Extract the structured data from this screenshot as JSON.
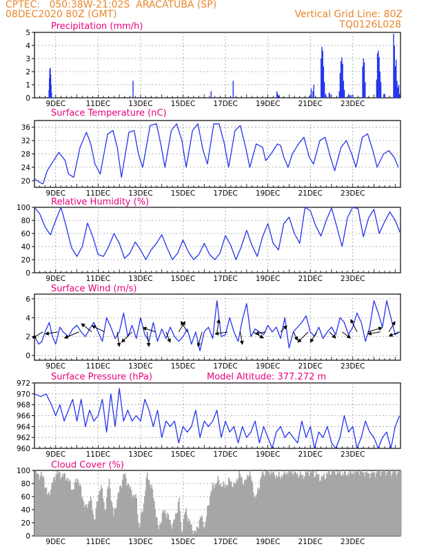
{
  "header": {
    "left_line1": "CPTEC:   050:38W-21:02S  ARACATUBA (SP)",
    "left_line2": "08DEC2020 80Z (GMT)",
    "right_line1": "Vertical Grid Line: 80Z",
    "right_line2": "TQ0126L028"
  },
  "colors": {
    "line": "#2233ee",
    "title": "#e6007e",
    "header": "#e8862a",
    "cloud": "#a6a6a6",
    "wind_arrow": "#000000"
  },
  "x_ticks": [
    "9DEC",
    "11DEC",
    "13DEC",
    "15DEC",
    "17DEC",
    "19DEC",
    "21DEC",
    "23DEC"
  ],
  "chart_data": [
    {
      "type": "bar",
      "id": "precip",
      "title": "Precipitation (mm/h)",
      "ylim": [
        0,
        5
      ],
      "yticks": [
        0,
        1,
        2,
        3,
        4,
        5
      ],
      "x_units": "days after 08DEC2020",
      "bars": [
        [
          0.68,
          0.6
        ],
        [
          0.7,
          1.5
        ],
        [
          0.72,
          2.2
        ],
        [
          0.74,
          2.3
        ],
        [
          0.76,
          1.8
        ],
        [
          0.78,
          1.0
        ],
        [
          0.8,
          0.4
        ],
        [
          4.64,
          1.3
        ],
        [
          8.32,
          0.5
        ],
        [
          9.36,
          1.3
        ],
        [
          11.42,
          0.5
        ],
        [
          11.46,
          0.3
        ],
        [
          11.54,
          0.2
        ],
        [
          12.96,
          0.15
        ],
        [
          13.04,
          0.7
        ],
        [
          13.12,
          0.5
        ],
        [
          13.16,
          1.0
        ],
        [
          13.5,
          3.0
        ],
        [
          13.54,
          3.9
        ],
        [
          13.58,
          3.6
        ],
        [
          13.62,
          2.4
        ],
        [
          13.66,
          1.2
        ],
        [
          13.72,
          0.3
        ],
        [
          13.88,
          0.4
        ],
        [
          13.92,
          0.3
        ],
        [
          14.36,
          0.5
        ],
        [
          14.4,
          1.9
        ],
        [
          14.44,
          2.8
        ],
        [
          14.48,
          3.1
        ],
        [
          14.52,
          2.6
        ],
        [
          14.56,
          1.3
        ],
        [
          14.6,
          0.6
        ],
        [
          14.8,
          0.3
        ],
        [
          14.86,
          0.2
        ],
        [
          14.92,
          0.2
        ],
        [
          15.0,
          0.2
        ],
        [
          15.46,
          2.4
        ],
        [
          15.5,
          3.0
        ],
        [
          15.54,
          2.7
        ],
        [
          15.58,
          1.2
        ],
        [
          16.12,
          1.4
        ],
        [
          16.16,
          3.4
        ],
        [
          16.2,
          3.6
        ],
        [
          16.24,
          3.1
        ],
        [
          16.28,
          2.0
        ],
        [
          16.32,
          1.2
        ],
        [
          16.46,
          0.3
        ],
        [
          16.5,
          0.3
        ],
        [
          16.92,
          4.9
        ],
        [
          16.96,
          4.0
        ],
        [
          17.0,
          2.4
        ],
        [
          17.04,
          2.9
        ],
        [
          17.08,
          1.3
        ],
        [
          17.12,
          0.8
        ],
        [
          17.16,
          1.0
        ],
        [
          17.2,
          0.3
        ]
      ]
    },
    {
      "type": "line",
      "id": "temp",
      "title": "Surface Temperature (nC)",
      "ylim": [
        18,
        38
      ],
      "yticks": [
        20,
        24,
        28,
        32,
        36
      ],
      "x": [
        0,
        0.25,
        0.4,
        0.6,
        0.9,
        1.15,
        1.45,
        1.6,
        1.85,
        2.15,
        2.45,
        2.65,
        2.85,
        3.1,
        3.45,
        3.7,
        3.9,
        4.1,
        4.45,
        4.7,
        4.9,
        5.1,
        5.45,
        5.75,
        5.95,
        6.15,
        6.45,
        6.7,
        6.95,
        7.15,
        7.45,
        7.7,
        7.95,
        8.15,
        8.45,
        8.7,
        8.95,
        9.15,
        9.45,
        9.7,
        9.95,
        10.15,
        10.45,
        10.75,
        10.9,
        11.15,
        11.45,
        11.6,
        11.75,
        11.95,
        12.15,
        12.45,
        12.7,
        12.95,
        13.15,
        13.45,
        13.7,
        13.95,
        14.15,
        14.45,
        14.7,
        14.95,
        15.15,
        15.45,
        15.7,
        15.95,
        16.15,
        16.45,
        16.7,
        16.95,
        17.15
      ],
      "y": [
        20.5,
        19.5,
        19,
        23,
        26,
        28.5,
        26,
        22,
        21,
        30,
        34.5,
        31,
        25,
        22,
        34,
        35,
        30,
        21,
        34.5,
        35,
        28,
        24,
        36.5,
        37,
        31,
        24,
        35,
        37,
        32,
        24,
        35,
        37,
        29,
        25,
        37,
        37,
        31,
        24,
        35,
        36.5,
        30,
        24,
        31,
        30,
        26,
        28,
        31,
        30.5,
        27,
        24,
        28,
        31,
        33,
        27,
        25,
        32,
        33,
        27,
        23,
        30,
        32,
        28,
        24,
        33,
        34,
        29,
        24,
        28,
        29,
        27,
        24
      ]
    },
    {
      "type": "line",
      "id": "rh",
      "title": "Relative Humidity (%)",
      "ylim": [
        0,
        100
      ],
      "yticks": [
        0,
        20,
        40,
        60,
        80,
        100
      ],
      "x": [
        0,
        0.25,
        0.5,
        0.75,
        1.0,
        1.25,
        1.5,
        1.75,
        2.0,
        2.25,
        2.5,
        2.75,
        3.0,
        3.25,
        3.5,
        3.75,
        4.0,
        4.25,
        4.5,
        4.75,
        5.0,
        5.25,
        5.5,
        5.75,
        6.0,
        6.25,
        6.5,
        6.75,
        7.0,
        7.25,
        7.5,
        7.75,
        8.0,
        8.25,
        8.5,
        8.75,
        9.0,
        9.25,
        9.5,
        9.75,
        10.0,
        10.25,
        10.5,
        10.75,
        11.0,
        11.25,
        11.5,
        11.75,
        12.0,
        12.25,
        12.5,
        12.75,
        13.0,
        13.25,
        13.5,
        13.75,
        14.0,
        14.25,
        14.5,
        14.75,
        15.0,
        15.25,
        15.5,
        15.75,
        16.0,
        16.25,
        16.5,
        16.75,
        17.0,
        17.25
      ],
      "y": [
        100,
        90,
        70,
        58,
        80,
        100,
        70,
        38,
        25,
        40,
        76,
        55,
        28,
        25,
        40,
        60,
        45,
        22,
        30,
        47,
        35,
        20,
        35,
        45,
        58,
        38,
        20,
        30,
        50,
        32,
        20,
        28,
        45,
        28,
        20,
        30,
        57,
        42,
        20,
        40,
        65,
        42,
        25,
        55,
        75,
        45,
        35,
        75,
        85,
        60,
        45,
        100,
        95,
        72,
        56,
        80,
        99,
        70,
        40,
        84,
        100,
        98,
        55,
        84,
        97,
        60,
        78,
        93,
        80,
        60
      ]
    },
    {
      "type": "line",
      "id": "wind",
      "title": "Surface Wind (m/s)",
      "ylim": [
        -0.5,
        6.5
      ],
      "yticks": [
        0,
        2,
        4,
        6
      ],
      "x": [
        0,
        0.2,
        0.35,
        0.5,
        0.7,
        0.85,
        1.0,
        1.2,
        1.35,
        1.6,
        1.8,
        2.0,
        2.2,
        2.4,
        2.6,
        2.8,
        3.0,
        3.2,
        3.4,
        3.6,
        3.8,
        4.0,
        4.2,
        4.4,
        4.6,
        4.8,
        5.0,
        5.2,
        5.4,
        5.6,
        5.8,
        6.0,
        6.2,
        6.4,
        6.6,
        6.8,
        7.0,
        7.2,
        7.4,
        7.6,
        7.8,
        8.0,
        8.2,
        8.4,
        8.6,
        8.8,
        9.0,
        9.2,
        9.4,
        9.6,
        9.8,
        10.0,
        10.2,
        10.4,
        10.6,
        10.8,
        11.0,
        11.2,
        11.4,
        11.6,
        11.8,
        12.0,
        12.2,
        12.4,
        12.6,
        12.8,
        13.0,
        13.2,
        13.4,
        13.6,
        13.8,
        14.0,
        14.2,
        14.4,
        14.6,
        14.8,
        15.0,
        15.2,
        15.4,
        15.6,
        15.8,
        16.0,
        16.2,
        16.4,
        16.6,
        16.8,
        17.0,
        17.2
      ],
      "y": [
        2,
        1.2,
        1.5,
        2.5,
        3.5,
        2.0,
        1.2,
        3.0,
        2.5,
        2.0,
        2.8,
        3.2,
        2.5,
        2.0,
        2.8,
        3.5,
        2.5,
        1.5,
        4.0,
        3.0,
        1.8,
        2.5,
        4.5,
        2.0,
        3.2,
        1.8,
        4.0,
        2.2,
        1.5,
        3.5,
        1.5,
        2.8,
        1.8,
        3.0,
        2.0,
        1.5,
        2.0,
        2.8,
        1.2,
        2.5,
        0.5,
        2.5,
        3.0,
        1.8,
        5.8,
        2.0,
        2.2,
        4.0,
        2.5,
        1.5,
        3.8,
        5.5,
        2.0,
        2.8,
        2.5,
        2.2,
        3.2,
        2.5,
        3.0,
        1.8,
        4.0,
        0.8,
        2.5,
        3.0,
        3.5,
        4.2,
        2.5,
        2.0,
        3.0,
        1.8,
        2.5,
        3.0,
        2.2,
        4.0,
        3.5,
        2.2,
        3.0,
        4.5,
        3.5,
        1.5,
        3.0,
        5.8,
        4.5,
        3.0,
        5.8,
        4.0,
        2.2,
        2.5
      ]
    },
    {
      "type": "line",
      "id": "pres",
      "title": "Surface Pressure (hPa)",
      "annotation": "Model Altitude: 377.272 m",
      "ylim": [
        960,
        972
      ],
      "yticks": [
        960,
        962,
        964,
        966,
        968,
        970,
        972
      ],
      "x": [
        0,
        0.3,
        0.55,
        0.8,
        1.0,
        1.2,
        1.4,
        1.6,
        1.8,
        2.0,
        2.2,
        2.4,
        2.6,
        2.8,
        3.0,
        3.2,
        3.4,
        3.6,
        3.8,
        4.0,
        4.2,
        4.4,
        4.6,
        4.8,
        5.0,
        5.2,
        5.4,
        5.6,
        5.8,
        6.0,
        6.2,
        6.4,
        6.6,
        6.8,
        7.0,
        7.2,
        7.4,
        7.6,
        7.8,
        8.0,
        8.2,
        8.4,
        8.6,
        8.8,
        9.0,
        9.2,
        9.4,
        9.6,
        9.8,
        10.0,
        10.2,
        10.4,
        10.6,
        10.8,
        11.0,
        11.2,
        11.4,
        11.6,
        11.8,
        12.0,
        12.2,
        12.4,
        12.6,
        12.8,
        13.0,
        13.2,
        13.4,
        13.6,
        13.8,
        14.0,
        14.2,
        14.4,
        14.6,
        14.8,
        15.0,
        15.2,
        15.4,
        15.6,
        15.8,
        16.0,
        16.2,
        16.4,
        16.6,
        16.8,
        17.0,
        17.2
      ],
      "y": [
        970,
        969.5,
        970,
        968,
        966,
        968,
        965,
        967,
        969,
        965,
        969,
        964,
        967,
        965,
        966,
        969,
        963,
        970,
        964,
        971,
        965,
        967,
        965,
        966,
        965,
        969,
        967,
        964,
        967,
        962,
        965,
        964,
        965,
        961,
        964,
        963,
        964,
        967,
        962,
        965,
        964,
        965,
        967,
        962,
        965,
        963,
        964,
        961,
        964,
        962,
        963,
        965,
        961,
        964,
        962,
        960,
        963,
        964,
        962,
        963,
        962,
        961,
        965,
        962,
        964,
        960,
        963,
        962,
        964,
        961,
        960,
        962,
        966,
        963,
        964,
        960,
        962,
        965,
        963,
        962,
        960,
        962,
        963,
        960,
        964,
        966
      ]
    },
    {
      "type": "bar",
      "id": "cloud",
      "title": "Cloud Cover (%)",
      "ylim": [
        0,
        100
      ],
      "yticks": [
        0,
        20,
        40,
        60,
        80,
        100
      ],
      "cloud_profile": [
        [
          0,
          97
        ],
        [
          0.4,
          90
        ],
        [
          0.6,
          60
        ],
        [
          1.0,
          96
        ],
        [
          1.5,
          90
        ],
        [
          1.8,
          70
        ],
        [
          2.0,
          90
        ],
        [
          2.4,
          40
        ],
        [
          2.6,
          60
        ],
        [
          2.8,
          25
        ],
        [
          3.1,
          80
        ],
        [
          3.3,
          40
        ],
        [
          3.5,
          85
        ],
        [
          3.7,
          30
        ],
        [
          3.9,
          60
        ],
        [
          4.2,
          95
        ],
        [
          4.5,
          70
        ],
        [
          4.8,
          55
        ],
        [
          4.9,
          10
        ],
        [
          5.1,
          45
        ],
        [
          5.3,
          95
        ],
        [
          5.6,
          60
        ],
        [
          5.8,
          10
        ],
        [
          6.1,
          40
        ],
        [
          6.5,
          15
        ],
        [
          6.8,
          55
        ],
        [
          6.9,
          5
        ],
        [
          7.1,
          40
        ],
        [
          7.4,
          10
        ],
        [
          7.6,
          5
        ],
        [
          7.8,
          30
        ],
        [
          8.0,
          15
        ],
        [
          8.3,
          70
        ],
        [
          8.6,
          85
        ],
        [
          8.9,
          75
        ],
        [
          9.2,
          85
        ],
        [
          9.4,
          75
        ],
        [
          9.6,
          95
        ],
        [
          9.9,
          80
        ],
        [
          10.1,
          100
        ],
        [
          10.4,
          55
        ],
        [
          10.7,
          95
        ],
        [
          11.0,
          100
        ],
        [
          11.5,
          90
        ],
        [
          12.0,
          100
        ],
        [
          12.6,
          92
        ],
        [
          13.0,
          100
        ],
        [
          13.5,
          88
        ],
        [
          14.0,
          100
        ],
        [
          14.6,
          95
        ],
        [
          15.2,
          100
        ],
        [
          15.8,
          95
        ],
        [
          16.4,
          100
        ],
        [
          16.9,
          98
        ],
        [
          17.2,
          100
        ]
      ]
    },
    {
      "type": "scatter",
      "id": "wind_vectors",
      "x": [
        0.4,
        1.1,
        2.1,
        2.7,
        3.3,
        3.9,
        4.6,
        5.3,
        5.7,
        6.2,
        6.8,
        7.2,
        7.9,
        8.6,
        9.1,
        9.7,
        10.3,
        10.9,
        11.6,
        12.2,
        12.9,
        13.3,
        13.9,
        14.5,
        15.2,
        15.7,
        16.3,
        16.7,
        17.2
      ],
      "u": [
        -0.5,
        -0.6,
        -0.7,
        -0.5,
        -0.6,
        0.1,
        -0.5,
        0.1,
        -0.6,
        0.2,
        0.3,
        -0.3,
        -0.2,
        0.1,
        -0.6,
        0.1,
        0.5,
        -0.5,
        0.3,
        0.2,
        -0.5,
        -0.3,
        0.3,
        0.4,
        -0.3,
        0.7,
        -0.6,
        0.3,
        -0.5
      ],
      "v": [
        -0.3,
        -0.1,
        -0.3,
        0.4,
        0.3,
        -0.7,
        -0.5,
        -0.7,
        0.2,
        -0.5,
        0.5,
        0.5,
        -0.7,
        0.6,
        -0.1,
        -0.6,
        -0.3,
        -0.1,
        0.3,
        -0.4,
        -0.5,
        -0.5,
        -0.3,
        -0.3,
        0.6,
        0.2,
        -0.1,
        0.5,
        -0.2
      ]
    }
  ]
}
